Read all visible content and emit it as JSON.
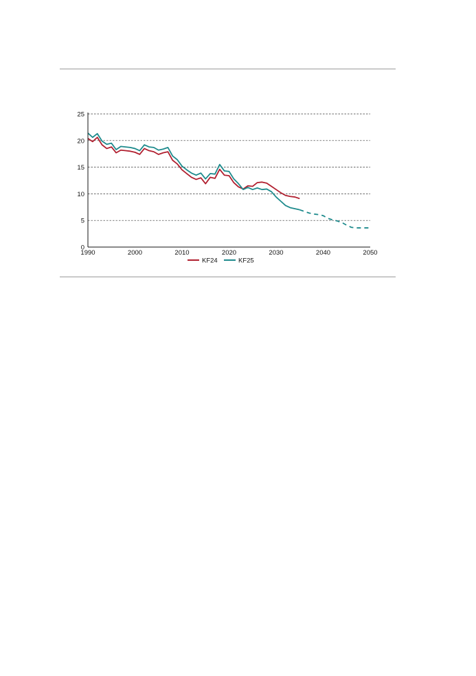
{
  "chart_data": {
    "type": "line",
    "title": "",
    "xlabel": "",
    "ylabel": "",
    "xlim": [
      1990,
      2050
    ],
    "ylim": [
      0,
      25
    ],
    "x_ticks": [
      1990,
      2000,
      2010,
      2020,
      2030,
      2040,
      2050
    ],
    "y_ticks": [
      0,
      5,
      10,
      15,
      20,
      25
    ],
    "grid": "horizontal dashed",
    "legend_position": "bottom-center",
    "colors": {
      "KF24": "#b01e2e",
      "KF25": "#1d8a8c"
    },
    "series": [
      {
        "name": "KF24",
        "style": "solid",
        "x": [
          1990,
          1991,
          1992,
          1993,
          1994,
          1995,
          1996,
          1997,
          1998,
          1999,
          2000,
          2001,
          2002,
          2003,
          2004,
          2005,
          2006,
          2007,
          2008,
          2009,
          2010,
          2011,
          2012,
          2013,
          2014,
          2015,
          2016,
          2017,
          2018,
          2019,
          2020,
          2021,
          2022,
          2023,
          2024,
          2025,
          2026,
          2027,
          2028,
          2029,
          2030,
          2031,
          2032,
          2033,
          2034,
          2035
        ],
        "y": [
          20.4,
          19.8,
          20.6,
          19.2,
          18.5,
          18.8,
          17.7,
          18.2,
          18.1,
          18.0,
          17.8,
          17.4,
          18.5,
          18.1,
          17.9,
          17.4,
          17.7,
          17.9,
          16.3,
          15.6,
          14.5,
          13.8,
          13.1,
          12.7,
          13.0,
          11.9,
          13.1,
          12.9,
          14.6,
          13.5,
          13.4,
          12.1,
          11.3,
          10.9,
          11.5,
          11.4,
          12.1,
          12.2,
          12.0,
          11.4,
          10.8,
          10.2,
          9.7,
          9.5,
          9.4,
          9.1
        ]
      },
      {
        "name": "KF25",
        "style": "solid",
        "x": [
          1990,
          1991,
          1992,
          1993,
          1994,
          1995,
          1996,
          1997,
          1998,
          1999,
          2000,
          2001,
          2002,
          2003,
          2004,
          2005,
          2006,
          2007,
          2008,
          2009,
          2010,
          2011,
          2012,
          2013,
          2014,
          2015,
          2016,
          2017,
          2018,
          2019,
          2020,
          2021,
          2022,
          2023,
          2024,
          2025,
          2026,
          2027,
          2028,
          2029,
          2030,
          2031,
          2032,
          2033,
          2034,
          2035
        ],
        "y": [
          21.4,
          20.6,
          21.3,
          19.9,
          19.3,
          19.5,
          18.3,
          18.9,
          18.8,
          18.7,
          18.5,
          18.1,
          19.2,
          18.8,
          18.7,
          18.2,
          18.4,
          18.7,
          17.1,
          16.4,
          15.2,
          14.5,
          13.9,
          13.5,
          13.9,
          12.8,
          13.8,
          13.7,
          15.5,
          14.3,
          14.2,
          12.8,
          11.9,
          10.8,
          11.2,
          10.8,
          11.1,
          10.8,
          10.9,
          10.4,
          9.4,
          8.6,
          7.8,
          7.4,
          7.2,
          7.0
        ]
      },
      {
        "name": "KF25",
        "style": "dashed",
        "x": [
          2035,
          2036,
          2037,
          2038,
          2039,
          2040,
          2041,
          2042,
          2043,
          2044,
          2045,
          2046,
          2047,
          2048,
          2049,
          2050
        ],
        "y": [
          7.0,
          6.7,
          6.4,
          6.2,
          6.1,
          5.9,
          5.4,
          5.1,
          4.9,
          4.6,
          4.1,
          3.7,
          3.6,
          3.6,
          3.6,
          3.6
        ]
      }
    ]
  }
}
